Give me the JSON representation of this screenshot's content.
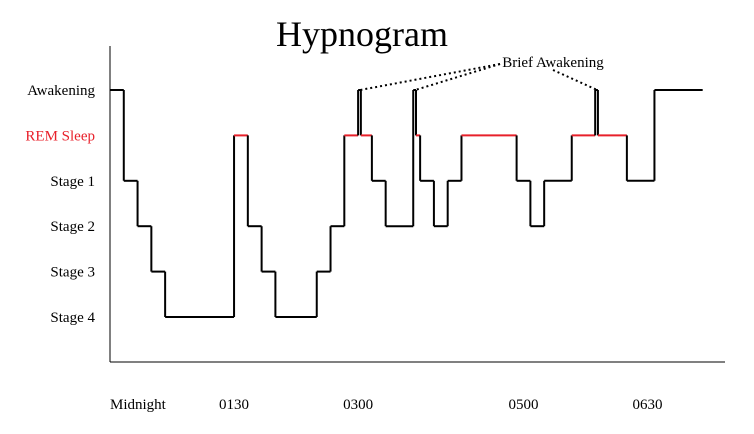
{
  "chart_data": {
    "type": "line",
    "title": "Hypnogram",
    "xlabel": "",
    "ylabel": "",
    "x_tick_labels": [
      "Midnight",
      "0130",
      "0300",
      "0500",
      "0630"
    ],
    "x_ticks_hours": [
      0,
      1.5,
      3,
      5,
      6.5
    ],
    "y_categories": [
      "Awakening",
      "REM Sleep",
      "Stage 1",
      "Stage 2",
      "Stage 3",
      "Stage 4"
    ],
    "y_category_colors": [
      "#000000",
      "#e8202a",
      "#000000",
      "#000000",
      "#000000",
      "#000000"
    ],
    "grid": false,
    "colors": {
      "default": "#000000",
      "rem": "#e8202a"
    },
    "series": [
      {
        "segments": [
          {
            "start": "00:00",
            "end": "00:10",
            "stage": "Awakening"
          },
          {
            "start": "00:10",
            "end": "00:20",
            "stage": "Stage 1"
          },
          {
            "start": "00:20",
            "end": "00:30",
            "stage": "Stage 2"
          },
          {
            "start": "00:30",
            "end": "00:40",
            "stage": "Stage 3"
          },
          {
            "start": "00:40",
            "end": "01:30",
            "stage": "Stage 4"
          },
          {
            "start": "01:30",
            "end": "01:40",
            "stage": "REM Sleep"
          },
          {
            "start": "01:40",
            "end": "01:50",
            "stage": "Stage 2"
          },
          {
            "start": "01:50",
            "end": "02:00",
            "stage": "Stage 3"
          },
          {
            "start": "02:00",
            "end": "02:30",
            "stage": "Stage 4"
          },
          {
            "start": "02:30",
            "end": "02:40",
            "stage": "Stage 3"
          },
          {
            "start": "02:40",
            "end": "02:50",
            "stage": "Stage 2"
          },
          {
            "start": "02:50",
            "end": "03:00",
            "stage": "REM Sleep"
          },
          {
            "start": "03:00",
            "end": "03:02",
            "stage": "Awakening"
          },
          {
            "start": "03:02",
            "end": "03:10",
            "stage": "REM Sleep"
          },
          {
            "start": "03:10",
            "end": "03:20",
            "stage": "Stage 1"
          },
          {
            "start": "03:20",
            "end": "03:40",
            "stage": "Stage 2"
          },
          {
            "start": "03:40",
            "end": "03:42",
            "stage": "Awakening"
          },
          {
            "start": "03:42",
            "end": "03:45",
            "stage": "REM Sleep"
          },
          {
            "start": "03:45",
            "end": "03:55",
            "stage": "Stage 1"
          },
          {
            "start": "03:55",
            "end": "04:05",
            "stage": "Stage 2"
          },
          {
            "start": "04:05",
            "end": "04:15",
            "stage": "Stage 1"
          },
          {
            "start": "04:15",
            "end": "04:55",
            "stage": "REM Sleep"
          },
          {
            "start": "04:55",
            "end": "05:05",
            "stage": "Stage 1"
          },
          {
            "start": "05:05",
            "end": "05:15",
            "stage": "Stage 2"
          },
          {
            "start": "05:15",
            "end": "05:35",
            "stage": "Stage 1"
          },
          {
            "start": "05:35",
            "end": "05:52",
            "stage": "REM Sleep"
          },
          {
            "start": "05:52",
            "end": "05:54",
            "stage": "Awakening"
          },
          {
            "start": "05:54",
            "end": "06:15",
            "stage": "REM Sleep"
          },
          {
            "start": "06:15",
            "end": "06:35",
            "stage": "Stage 1"
          },
          {
            "start": "06:35",
            "end": "07:10",
            "stage": "Awakening"
          }
        ]
      }
    ],
    "annotations": [
      {
        "text": "Brief Awakening",
        "targets": [
          "03:00",
          "03:40",
          "05:52"
        ]
      }
    ]
  }
}
